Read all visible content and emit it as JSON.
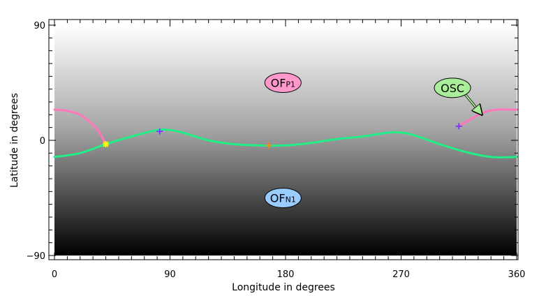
{
  "chart_data": {
    "type": "line",
    "title": "",
    "xlabel": "Longitude in degrees",
    "ylabel": "Latitude in degrees",
    "xlim": [
      0,
      360
    ],
    "ylim": [
      -90,
      90
    ],
    "xticks": [
      0,
      90,
      180,
      270,
      360
    ],
    "xtick_labels": [
      "0",
      "90",
      "180",
      "270",
      "360"
    ],
    "yticks": [
      -90,
      0,
      90
    ],
    "ytick_labels": [
      "−90",
      "0",
      "90"
    ],
    "background": "vertical gradient, white at top (+90) to black at bottom (-90)",
    "colors": {
      "neutral_line": "#22ee88",
      "open_closed_boundary": "#ff77bb"
    },
    "series": [
      {
        "x": [
          0,
          20,
          40,
          60,
          80,
          90,
          100,
          120,
          140,
          160,
          180,
          200,
          220,
          240,
          260,
          270,
          280,
          300,
          320,
          340,
          360
        ],
        "y": [
          -13,
          -10,
          -3,
          3,
          8,
          8,
          6,
          0,
          -3,
          -4,
          -4,
          -2,
          1,
          3,
          6,
          6,
          4,
          -3,
          -9,
          -13,
          -13
        ]
      },
      {
        "x": [
          0,
          10,
          20,
          30,
          35,
          40
        ],
        "y": [
          24,
          23,
          20,
          12,
          6,
          -3
        ]
      },
      {
        "x": [
          315,
          325,
          335,
          345,
          355,
          360
        ],
        "y": [
          11,
          17,
          22,
          24,
          24,
          24
        ]
      }
    ],
    "markers": [
      {
        "x": 40,
        "y": -3,
        "color": "#ffff00",
        "symbol": "asterisk"
      },
      {
        "x": 82,
        "y": 7,
        "color": "#7733ff",
        "symbol": "plus"
      },
      {
        "x": 167,
        "y": -4,
        "color": "#ff8800",
        "symbol": "plus"
      },
      {
        "x": 315,
        "y": 11,
        "color": "#7733ff",
        "symbol": "plus"
      }
    ],
    "annotations": [
      {
        "main": "OF",
        "sub": "P1",
        "x": 178,
        "y": 45,
        "fill": "#ff99cc"
      },
      {
        "main": "OF",
        "sub": "N1",
        "x": 178,
        "y": -45,
        "fill": "#99ccff"
      },
      {
        "main": "OSC",
        "sub": "",
        "x": 310,
        "y": 41,
        "fill": "#aaee99",
        "arrow_to": [
          333,
          20
        ]
      }
    ]
  }
}
